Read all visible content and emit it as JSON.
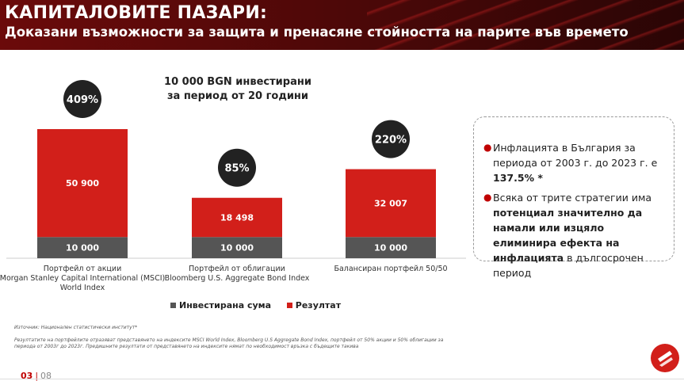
{
  "header": {
    "title": "КАПИТАЛОВИТЕ ПАЗАРИ:",
    "subtitle": "Доказани възможности за защита и пренасяне стойността на парите във времето"
  },
  "chart_data": {
    "type": "bar",
    "stacked": true,
    "title_line1": "10 000 BGN инвестирани",
    "title_line2": "за период от 20 години",
    "categories": [
      [
        "Портфейл от акции",
        "Morgan Stanley Capital International (MSCI)",
        "World Index"
      ],
      [
        "Портфейл от облигации",
        "Bloomberg U.S. Aggregate Bond Index"
      ],
      [
        "Балансиран портфейл 50/50"
      ]
    ],
    "series": [
      {
        "name": "Инвестирана сума",
        "values": [
          10000,
          10000,
          10000
        ],
        "labels": [
          "10 000",
          "10 000",
          "10 000"
        ],
        "color": "#555555"
      },
      {
        "name": "Резултат",
        "values": [
          50900,
          18498,
          32007
        ],
        "labels": [
          "50 900",
          "18 498",
          "32 007"
        ],
        "color": "#d21f1a"
      }
    ],
    "returns": [
      "409%",
      "85%",
      "220%"
    ],
    "ylim": [
      0,
      70000
    ],
    "grid": false,
    "legend_position": "bottom"
  },
  "info": {
    "bullet1": "Инфлацията в България за периода от 2003 г. до 2023 г. е 137.5% *",
    "bullet2": "Всяка от трите стратегии има потенциал значително да намали или изцяло елиминира ефекта на инфлацията в дългосрочен период"
  },
  "footnotes": {
    "source": "Източник: Национален статистически институт*",
    "note": "Резултатите на портфейлите отразяват представянето на индексите MSCI World Index, Bloomberg U.S Aggregate Bond Index, портфейл от 50% акции и 50% облигации за периода от 2003г до 2023г. Предишните резултати от представянето на индексите нямат по необходимост връзка с бъдещите такива"
  },
  "page": {
    "current": "03",
    "total": "08"
  },
  "colors": {
    "accent": "#c00000",
    "header": "#5a0909"
  }
}
